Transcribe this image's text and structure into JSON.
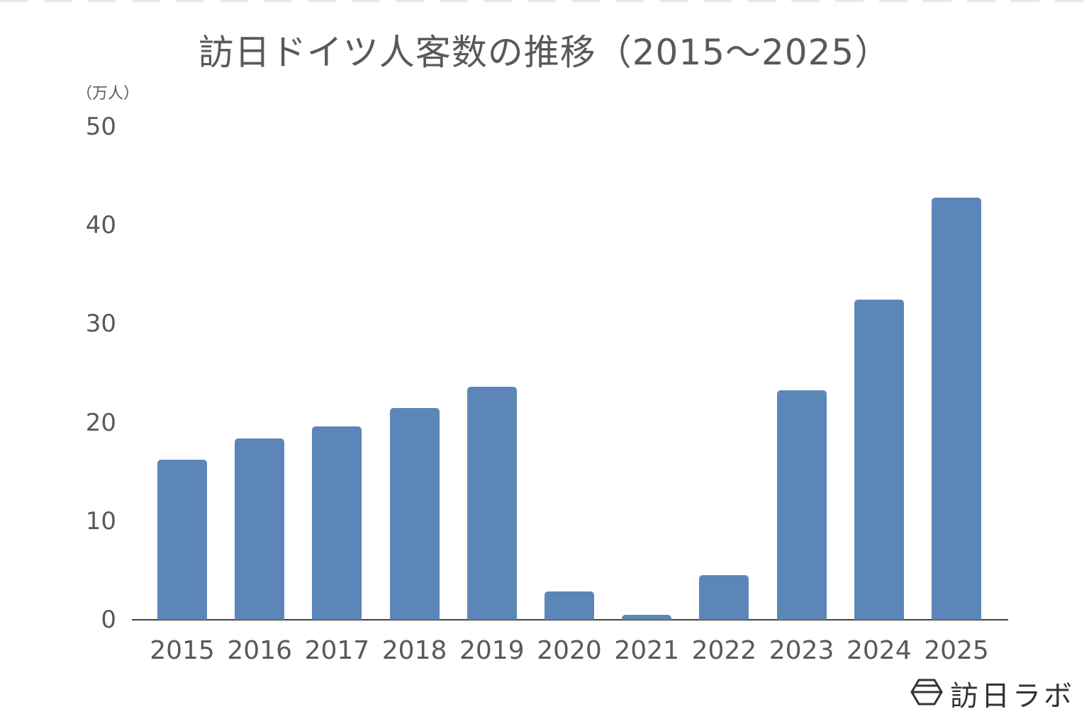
{
  "page": {
    "border_color": "#e8e8e8"
  },
  "chart_data": {
    "type": "bar",
    "title": "訪日ドイツ人客数の推移（2015～2025）",
    "xlabel": "",
    "ylabel": "（万人）",
    "categories": [
      "2015",
      "2016",
      "2017",
      "2018",
      "2019",
      "2020",
      "2021",
      "2022",
      "2023",
      "2024",
      "2025"
    ],
    "values": [
      16.2,
      18.4,
      19.6,
      21.5,
      23.6,
      2.9,
      0.5,
      4.5,
      23.3,
      32.5,
      42.8
    ],
    "ylim": [
      0,
      50
    ],
    "yticks": [
      "0",
      "10",
      "20",
      "30",
      "40",
      "50"
    ],
    "grid": false,
    "legend": null,
    "bar_color": "#5d86b8",
    "axis_color": "#404040",
    "text_color": "#595959"
  },
  "brand": {
    "name": "訪日ラボ",
    "icon": "hexagon-logo-icon"
  }
}
